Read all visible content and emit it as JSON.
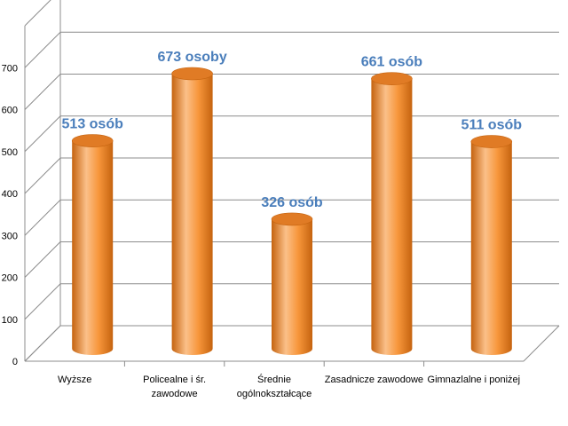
{
  "chart_data": {
    "type": "bar",
    "style": "3d-cylinder",
    "categories": [
      [
        "Wyższe"
      ],
      [
        "Policealne i śr.",
        "zawodowe"
      ],
      [
        "Średnie",
        "ogólnokształcące"
      ],
      [
        "Zasadnicze zawodowe"
      ],
      [
        "Gimnazlalne i poniżej"
      ]
    ],
    "values": [
      513,
      673,
      326,
      661,
      511
    ],
    "data_labels": [
      "513 osób",
      "673 osoby",
      "326 osób",
      "661 osób",
      "511 osób"
    ],
    "y_ticks": [
      "0",
      "100",
      "200",
      "300",
      "400",
      "500",
      "600",
      "700"
    ],
    "ylim": [
      0,
      800
    ],
    "grid": true,
    "legend": "none",
    "colors": {
      "bar_body": "#f7963b",
      "bar_light": "#fbc089",
      "bar_dark": "#c5630f",
      "bar_top": "#e07b25",
      "label": "#4a7ebb",
      "grid": "#8c8c8c"
    }
  }
}
